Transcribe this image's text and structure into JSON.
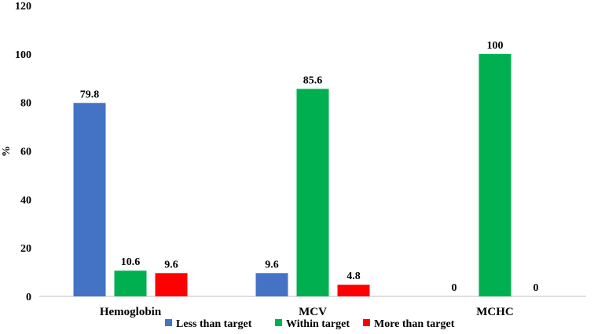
{
  "chart_data": {
    "type": "bar",
    "title": "",
    "xlabel": "",
    "ylabel": "%",
    "ylim": [
      0,
      120
    ],
    "yticks": [
      0,
      20,
      40,
      60,
      80,
      100,
      120
    ],
    "grid": false,
    "legend_position": "bottom",
    "categories": [
      "Hemoglobin",
      "MCV",
      "MCHC"
    ],
    "series": [
      {
        "name": "Less than target",
        "color": "#4472C4",
        "values": [
          79.8,
          9.6,
          0
        ],
        "labels": [
          "79.8",
          "9.6",
          "0"
        ]
      },
      {
        "name": "Within target",
        "color": "#00B050",
        "values": [
          10.6,
          85.6,
          100
        ],
        "labels": [
          "10.6",
          "85.6",
          "100"
        ]
      },
      {
        "name": "More than target",
        "color": "#FF0000",
        "values": [
          9.6,
          4.8,
          0
        ],
        "labels": [
          "9.6",
          "4.8",
          "0"
        ]
      }
    ]
  }
}
